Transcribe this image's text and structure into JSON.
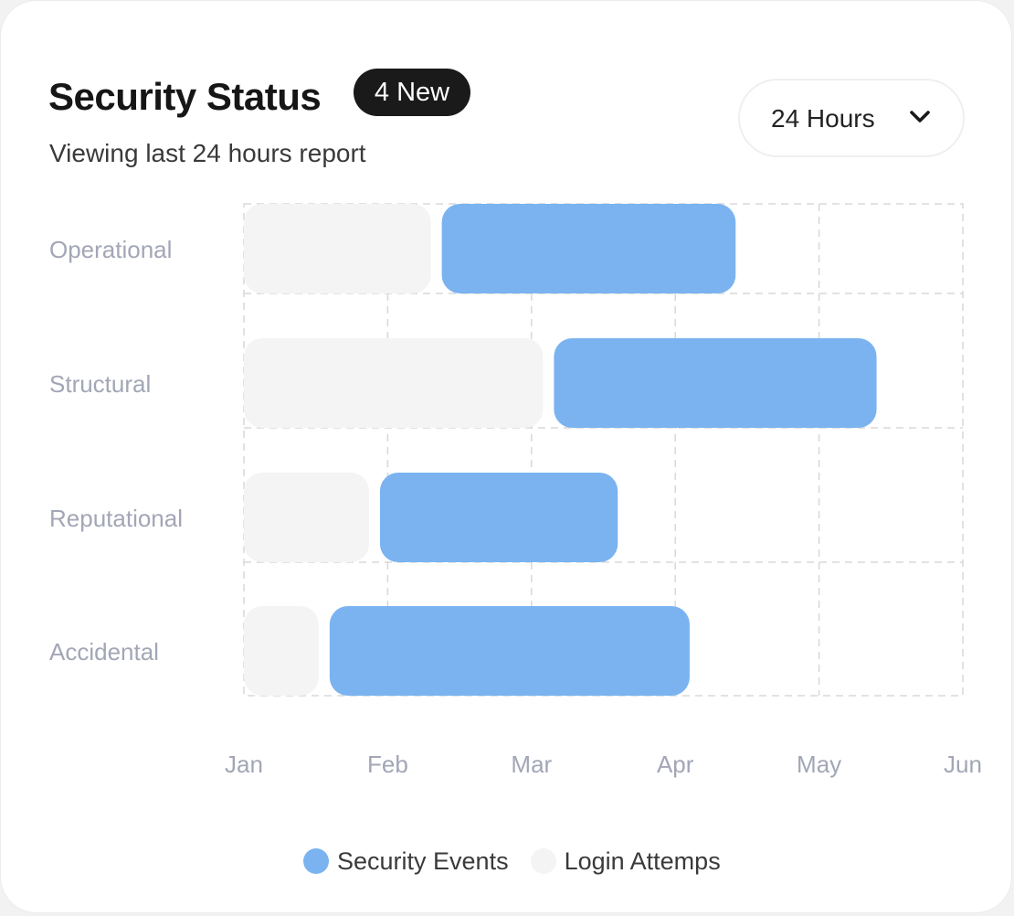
{
  "header": {
    "title": "Security Status",
    "badge": "4 New",
    "subtitle": "Viewing last 24 hours report"
  },
  "range_select": {
    "value": "24 Hours",
    "icon": "chevron-down-icon"
  },
  "colors": {
    "security_events": "#7ab3f0",
    "login_attempts": "#f4f4f4",
    "grid": "#d8d8d8",
    "axis_text": "#a2a6b6"
  },
  "chart_data": {
    "type": "bar",
    "orientation": "horizontal",
    "stacked": true,
    "categories": [
      "Operational",
      "Structural",
      "Reputational",
      "Accidental"
    ],
    "x_ticks": [
      "Jan",
      "Feb",
      "Mar",
      "Apr",
      "May",
      "Jun"
    ],
    "x_range": [
      0,
      5
    ],
    "series": [
      {
        "name": "Login Attemps",
        "values": [
          1.3,
          2.08,
          0.87,
          0.52
        ]
      },
      {
        "name": "Security Events",
        "values": [
          2.12,
          2.32,
          1.73,
          2.58
        ]
      }
    ],
    "grid": true,
    "legend": "bottom-center"
  },
  "legend": {
    "items": [
      {
        "label": "Security Events"
      },
      {
        "label": "Login Attemps"
      }
    ]
  }
}
